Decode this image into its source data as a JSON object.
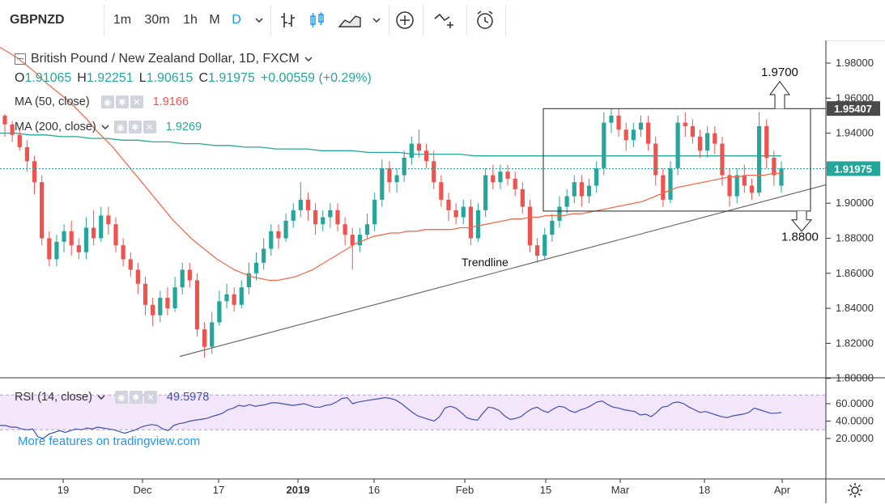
{
  "toolbar": {
    "symbol": "GBPNZD",
    "intervals": [
      "1m",
      "30m",
      "1h",
      "M",
      "D"
    ],
    "chevron_icon": "chevron-down-icon",
    "icons": [
      "indicator-icon",
      "candles-icon",
      "area-chart-icon",
      "add-compare-icon",
      "alert-icon",
      "replay-alarm-icon"
    ]
  },
  "legend": {
    "title": "British Pound / New Zealand Dollar, 1D, FXCM",
    "o_label": "O",
    "o": "1.91065",
    "h_label": "H",
    "h": "1.92251",
    "l_label": "L",
    "l": "1.90615",
    "c_label": "C",
    "c": "1.91975",
    "change": "+0.00559 (+0.29%)",
    "ma50_label": "MA (50, close)",
    "ma50_value": "1.9166",
    "ma200_label": "MA (200, close)",
    "ma200_value": "1.9269",
    "rsi_label": "RSI (14, close)",
    "rsi_value": "49.5978",
    "more": "More features on tradingview.com"
  },
  "annotations": {
    "upper_target": "1.9700",
    "lower_target": "1.8800",
    "trendline": "Trendline"
  },
  "price_axis": [
    "1.98000",
    "1.96000",
    "1.94000",
    "1.92000",
    "1.90000",
    "1.88000",
    "1.86000",
    "1.84000",
    "1.82000",
    "1.80000"
  ],
  "price_badges": {
    "level": "1.95407",
    "last": "1.91975"
  },
  "rsi_axis": [
    "60.0000",
    "40.0000",
    "20.0000"
  ],
  "time_axis": [
    "19",
    "Dec",
    "17",
    "2019",
    "16",
    "Feb",
    "15",
    "Mar",
    "18",
    "Apr"
  ],
  "colors": {
    "up": "#26a69a",
    "down": "#ef5350",
    "ma50": "#ef6c4f",
    "ma200": "#26a69a",
    "rsi": "#3f51b5",
    "rsi_band": "#f3e5fa"
  },
  "chart_data": {
    "type": "candlestick",
    "ylim": [
      1.8,
      1.99
    ],
    "candles": [
      [
        1.95,
        1.945,
        1.951,
        1.938
      ],
      [
        1.945,
        1.939,
        1.947,
        1.935
      ],
      [
        1.939,
        1.932,
        1.943,
        1.93
      ],
      [
        1.932,
        1.924,
        1.936,
        1.918
      ],
      [
        1.924,
        1.912,
        1.927,
        1.905
      ],
      [
        1.912,
        1.88,
        1.916,
        1.876
      ],
      [
        1.88,
        1.868,
        1.884,
        1.864
      ],
      [
        1.868,
        1.878,
        1.882,
        1.864
      ],
      [
        1.878,
        1.884,
        1.888,
        1.872
      ],
      [
        1.884,
        1.876,
        1.89,
        1.87
      ],
      [
        1.876,
        1.872,
        1.88,
        1.868
      ],
      [
        1.872,
        1.886,
        1.892,
        1.868
      ],
      [
        1.886,
        1.88,
        1.896,
        1.876
      ],
      [
        1.88,
        1.893,
        1.898,
        1.878
      ],
      [
        1.893,
        1.888,
        1.898,
        1.882
      ],
      [
        1.888,
        1.876,
        1.892,
        1.872
      ],
      [
        1.876,
        1.868,
        1.88,
        1.864
      ],
      [
        1.868,
        1.862,
        1.872,
        1.858
      ],
      [
        1.862,
        1.854,
        1.866,
        1.848
      ],
      [
        1.854,
        1.842,
        1.858,
        1.836
      ],
      [
        1.842,
        1.836,
        1.846,
        1.83
      ],
      [
        1.836,
        1.846,
        1.85,
        1.832
      ],
      [
        1.846,
        1.84,
        1.852,
        1.836
      ],
      [
        1.84,
        1.852,
        1.858,
        1.838
      ],
      [
        1.852,
        1.862,
        1.866,
        1.848
      ],
      [
        1.862,
        1.856,
        1.866,
        1.852
      ],
      [
        1.856,
        1.828,
        1.86,
        1.824
      ],
      [
        1.828,
        1.818,
        1.832,
        1.812
      ],
      [
        1.818,
        1.832,
        1.838,
        1.814
      ],
      [
        1.832,
        1.844,
        1.85,
        1.83
      ],
      [
        1.844,
        1.848,
        1.854,
        1.84
      ],
      [
        1.848,
        1.842,
        1.852,
        1.838
      ],
      [
        1.842,
        1.852,
        1.856,
        1.84
      ],
      [
        1.852,
        1.86,
        1.866,
        1.848
      ],
      [
        1.86,
        1.866,
        1.872,
        1.856
      ],
      [
        1.866,
        1.874,
        1.88,
        1.862
      ],
      [
        1.874,
        1.884,
        1.888,
        1.87
      ],
      [
        1.884,
        1.88,
        1.888,
        1.874
      ],
      [
        1.88,
        1.89,
        1.894,
        1.878
      ],
      [
        1.89,
        1.896,
        1.9,
        1.886
      ],
      [
        1.896,
        1.902,
        1.912,
        1.892
      ],
      [
        1.902,
        1.896,
        1.906,
        1.89
      ],
      [
        1.896,
        1.888,
        1.9,
        1.882
      ],
      [
        1.888,
        1.892,
        1.896,
        1.884
      ],
      [
        1.892,
        1.896,
        1.9,
        1.886
      ],
      [
        1.896,
        1.888,
        1.9,
        1.884
      ],
      [
        1.888,
        1.882,
        1.892,
        1.876
      ],
      [
        1.882,
        1.876,
        1.886,
        1.862
      ],
      [
        1.876,
        1.882,
        1.886,
        1.872
      ],
      [
        1.882,
        1.888,
        1.894,
        1.88
      ],
      [
        1.888,
        1.902,
        1.906,
        1.884
      ],
      [
        1.902,
        1.92,
        1.925,
        1.898
      ],
      [
        1.92,
        1.912,
        1.924,
        1.906
      ],
      [
        1.912,
        1.916,
        1.92,
        1.906
      ],
      [
        1.916,
        1.926,
        1.93,
        1.912
      ],
      [
        1.926,
        1.934,
        1.938,
        1.922
      ],
      [
        1.934,
        1.93,
        1.942,
        1.926
      ],
      [
        1.93,
        1.924,
        1.934,
        1.92
      ],
      [
        1.924,
        1.912,
        1.93,
        1.908
      ],
      [
        1.912,
        1.902,
        1.916,
        1.898
      ],
      [
        1.902,
        1.896,
        1.906,
        1.89
      ],
      [
        1.896,
        1.892,
        1.9,
        1.888
      ],
      [
        1.892,
        1.898,
        1.902,
        1.888
      ],
      [
        1.898,
        1.88,
        1.902,
        1.876
      ],
      [
        1.88,
        1.896,
        1.9,
        1.878
      ],
      [
        1.896,
        1.916,
        1.92,
        1.892
      ],
      [
        1.916,
        1.912,
        1.922,
        1.908
      ],
      [
        1.912,
        1.918,
        1.922,
        1.908
      ],
      [
        1.918,
        1.914,
        1.922,
        1.91
      ],
      [
        1.914,
        1.908,
        1.918,
        1.904
      ],
      [
        1.908,
        1.898,
        1.912,
        1.894
      ],
      [
        1.898,
        1.876,
        1.902,
        1.872
      ],
      [
        1.876,
        1.87,
        1.88,
        1.866
      ],
      [
        1.87,
        1.882,
        1.886,
        1.868
      ],
      [
        1.882,
        1.89,
        1.894,
        1.878
      ],
      [
        1.89,
        1.898,
        1.904,
        1.886
      ],
      [
        1.898,
        1.904,
        1.908,
        1.894
      ],
      [
        1.904,
        1.912,
        1.916,
        1.9
      ],
      [
        1.912,
        1.904,
        1.916,
        1.898
      ],
      [
        1.904,
        1.91,
        1.914,
        1.9
      ],
      [
        1.91,
        1.92,
        1.924,
        1.906
      ],
      [
        1.92,
        1.946,
        1.952,
        1.916
      ],
      [
        1.946,
        1.95,
        1.954,
        1.94
      ],
      [
        1.95,
        1.942,
        1.954,
        1.938
      ],
      [
        1.942,
        1.936,
        1.946,
        1.93
      ],
      [
        1.936,
        1.942,
        1.946,
        1.932
      ],
      [
        1.942,
        1.946,
        1.95,
        1.938
      ],
      [
        1.946,
        1.934,
        1.95,
        1.93
      ],
      [
        1.934,
        1.916,
        1.938,
        1.91
      ],
      [
        1.916,
        1.902,
        1.92,
        1.898
      ],
      [
        1.902,
        1.92,
        1.924,
        1.9
      ],
      [
        1.92,
        1.946,
        1.95,
        1.916
      ],
      [
        1.946,
        1.944,
        1.952,
        1.938
      ],
      [
        1.944,
        1.938,
        1.948,
        1.934
      ],
      [
        1.938,
        1.93,
        1.942,
        1.926
      ],
      [
        1.93,
        1.94,
        1.944,
        1.926
      ],
      [
        1.94,
        1.934,
        1.944,
        1.928
      ],
      [
        1.934,
        1.916,
        1.938,
        1.91
      ],
      [
        1.916,
        1.904,
        1.92,
        1.898
      ],
      [
        1.904,
        1.916,
        1.92,
        1.9
      ],
      [
        1.916,
        1.91,
        1.922,
        1.906
      ],
      [
        1.91,
        1.906,
        1.914,
        1.902
      ],
      [
        1.906,
        1.944,
        1.952,
        1.904
      ],
      [
        1.944,
        1.926,
        1.948,
        1.92
      ],
      [
        1.926,
        1.916,
        1.93,
        1.91
      ],
      [
        1.91,
        1.92,
        1.924,
        1.906
      ]
    ],
    "ma50": [
      1.989,
      1.986,
      1.983,
      1.979,
      1.975,
      1.97,
      1.966,
      1.962,
      1.958,
      1.953,
      1.948,
      1.942,
      1.937,
      1.932,
      1.926,
      1.92,
      1.914,
      1.908,
      1.902,
      1.896,
      1.89,
      1.885,
      1.88,
      1.876,
      1.872,
      1.868,
      1.865,
      1.862,
      1.86,
      1.858,
      1.857,
      1.856,
      1.856,
      1.857,
      1.858,
      1.86,
      1.862,
      1.865,
      1.868,
      1.871,
      1.874,
      1.877,
      1.879,
      1.881,
      1.882,
      1.883,
      1.883,
      1.884,
      1.884,
      1.885,
      1.885,
      1.885,
      1.885,
      1.886,
      1.886,
      1.887,
      1.888,
      1.889,
      1.89,
      1.891,
      1.891,
      1.892,
      1.892,
      1.893,
      1.893,
      1.893,
      1.894,
      1.894,
      1.895,
      1.896,
      1.897,
      1.898,
      1.899,
      1.9,
      1.901,
      1.903,
      1.905,
      1.907,
      1.909,
      1.91,
      1.911,
      1.912,
      1.913,
      1.914,
      1.915,
      1.915,
      1.916,
      1.916,
      1.916,
      1.917,
      1.917
    ],
    "ma200": [
      1.94,
      1.94,
      1.939,
      1.939,
      1.938,
      1.938,
      1.937,
      1.937,
      1.936,
      1.936,
      1.935,
      1.935,
      1.934,
      1.934,
      1.933,
      1.933,
      1.932,
      1.932,
      1.931,
      1.931,
      1.931,
      1.93,
      1.93,
      1.93,
      1.929,
      1.929,
      1.929,
      1.928,
      1.928,
      1.928,
      1.928,
      1.927,
      1.927,
      1.927,
      1.927,
      1.927,
      1.927,
      1.927,
      1.927,
      1.927,
      1.927,
      1.927,
      1.927,
      1.927,
      1.927,
      1.927,
      1.927,
      1.927,
      1.927,
      1.927,
      1.927,
      1.927
    ],
    "rsi": [
      35,
      35,
      33,
      33,
      31,
      30,
      31,
      22,
      20,
      25,
      27,
      29,
      27,
      29,
      31,
      30,
      32,
      31,
      33,
      32,
      31,
      30,
      28,
      26,
      28,
      30,
      33,
      35,
      36,
      35,
      31,
      29,
      35,
      37,
      38,
      40,
      41,
      42,
      43,
      45,
      47,
      49,
      53,
      55,
      58,
      57,
      59,
      57,
      58,
      59,
      61,
      61,
      60,
      59,
      58,
      59,
      60,
      58,
      56,
      56,
      58,
      59,
      62,
      66,
      67,
      60,
      62,
      63,
      64,
      65,
      66,
      67,
      66,
      64,
      60,
      55,
      50,
      46,
      44,
      42,
      40,
      45,
      55,
      57,
      55,
      50,
      44,
      42,
      41,
      49,
      56,
      55,
      52,
      46,
      42,
      43,
      45,
      50,
      54,
      56,
      52,
      50,
      54,
      57,
      56,
      52,
      50,
      53,
      55,
      58,
      62,
      63,
      59,
      56,
      55,
      53,
      52,
      51,
      47,
      48,
      45,
      50,
      56,
      57,
      61,
      62,
      60,
      56,
      53,
      50,
      51,
      49,
      47,
      45,
      44,
      46,
      47,
      48,
      50,
      55,
      53,
      51,
      49,
      49,
      50
    ]
  }
}
